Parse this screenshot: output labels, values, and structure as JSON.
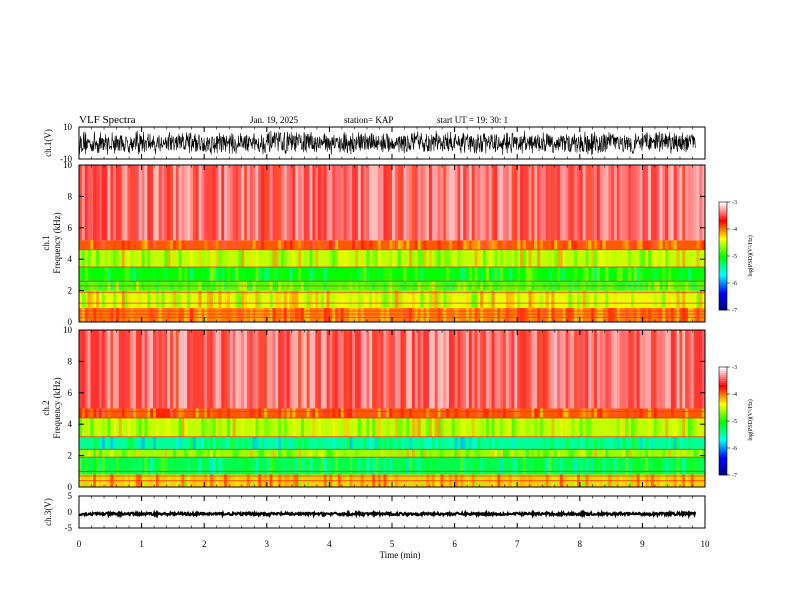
{
  "header": {
    "title": "VLF Spectra",
    "date": "Jan. 19, 2025",
    "station": "station= KAP",
    "start": "start UT =   19: 30: 1"
  },
  "colors": {
    "background": "#ffffff",
    "ink": "#000000",
    "colormap": [
      "#000080",
      "#0000ff",
      "#00ffff",
      "#00ff00",
      "#ffff00",
      "#ff0000",
      "#ffffff"
    ]
  },
  "chart_data": [
    {
      "type": "line",
      "panel": "ch1-waveform",
      "ylabel": "ch.1(V)",
      "ylim": [
        -10,
        10
      ],
      "yticks": [
        "10",
        "-10"
      ],
      "x_range": [
        0,
        10
      ],
      "description_values": {
        "amplitude_range": [
          -8,
          8
        ],
        "data_end_min": 9.85
      }
    },
    {
      "type": "heatmap",
      "panel": "ch1-spectrogram",
      "ylabel_line1": "ch.1",
      "ylabel_line2": "Frequency (kHz)",
      "ylim": [
        0,
        10
      ],
      "yticks": [
        "0",
        "2",
        "4",
        "6",
        "8",
        "10"
      ],
      "x_range": [
        0,
        10
      ],
      "colorbar": {
        "label": "log(PSD)(V²/Hz)",
        "ticks": [
          "-3",
          "-4",
          "-5",
          "-6",
          "-7"
        ],
        "range": [
          -7,
          -3
        ]
      },
      "bands_khz": [
        {
          "f0": 0,
          "f1": 0.9,
          "level": -4.0
        },
        {
          "f0": 0.9,
          "f1": 2.0,
          "level": -4.4
        },
        {
          "f0": 2.0,
          "f1": 2.6,
          "level": -4.8
        },
        {
          "f0": 2.6,
          "f1": 3.5,
          "level": -5.0
        },
        {
          "f0": 3.5,
          "f1": 4.6,
          "level": -4.5
        },
        {
          "f0": 4.6,
          "f1": 5.2,
          "level": -3.9
        },
        {
          "f0": 5.2,
          "f1": 10,
          "level": -3.4
        }
      ],
      "line_khz": [
        0.3,
        0.5,
        0.7,
        1.2,
        1.9,
        2.3,
        2.6,
        3.5,
        4.6
      ]
    },
    {
      "type": "heatmap",
      "panel": "ch2-spectrogram",
      "ylabel_line1": "ch.2",
      "ylabel_line2": "Frequency (kHz)",
      "ylim": [
        0,
        10
      ],
      "yticks": [
        "0",
        "2",
        "4",
        "6",
        "8",
        "10"
      ],
      "x_range": [
        0,
        10
      ],
      "colorbar": {
        "label": "log(PSD)(V²/Hz)",
        "ticks": [
          "-3",
          "-4",
          "-5",
          "-6",
          "-7"
        ],
        "range": [
          -7,
          -3
        ]
      },
      "bands_khz": [
        {
          "f0": 0,
          "f1": 0.8,
          "level": -4.2
        },
        {
          "f0": 0.8,
          "f1": 1.9,
          "level": -5.2
        },
        {
          "f0": 1.9,
          "f1": 2.4,
          "level": -4.6
        },
        {
          "f0": 2.4,
          "f1": 3.2,
          "level": -5.4
        },
        {
          "f0": 3.2,
          "f1": 4.4,
          "level": -4.5
        },
        {
          "f0": 4.4,
          "f1": 5.0,
          "level": -3.9
        },
        {
          "f0": 5.0,
          "f1": 10,
          "level": -3.4
        }
      ],
      "line_khz": [
        0.4,
        0.7,
        1.0,
        1.9,
        2.4,
        3.2,
        4.4,
        4.8
      ]
    },
    {
      "type": "line",
      "panel": "ch3-waveform",
      "ylabel": "ch.3(V)",
      "ylim": [
        -5,
        5
      ],
      "yticks": [
        "5",
        "0",
        "-5"
      ],
      "x_range": [
        0,
        10
      ],
      "description_values": {
        "level_v": -0.6,
        "amplitude_range": [
          -1.0,
          -0.2
        ],
        "data_end_min": 9.85
      }
    }
  ],
  "xaxis": {
    "label": "Time (min)",
    "ticks": [
      "0",
      "1",
      "2",
      "3",
      "4",
      "5",
      "6",
      "7",
      "8",
      "9",
      "10"
    ],
    "range": [
      0,
      10
    ]
  }
}
